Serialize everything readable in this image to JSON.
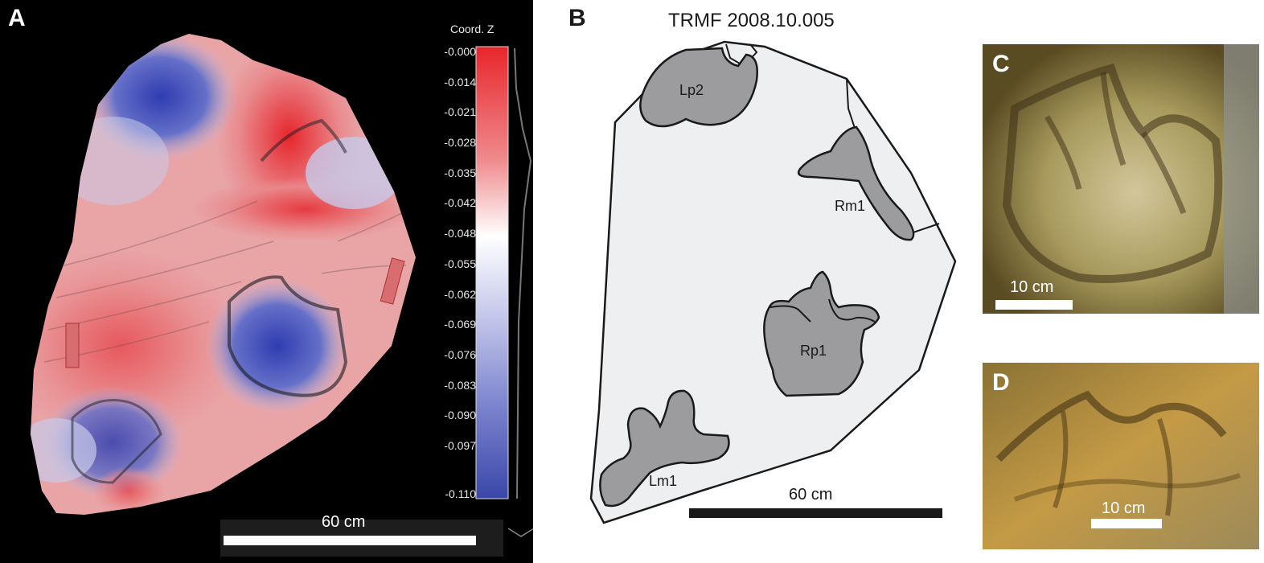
{
  "panel_a": {
    "letter": "A",
    "colorbar_title": "Coord. Z",
    "colorbar_ticks": [
      "-0.000",
      "-0.014",
      "-0.021",
      "-0.028",
      "-0.035",
      "-0.042",
      "-0.048",
      "-0.055",
      "-0.062",
      "-0.069",
      "-0.076",
      "-0.083",
      "-0.090",
      "-0.097",
      "-0.110"
    ],
    "colorbar_colors": {
      "top": "#e8262b",
      "middle": "#ffffff",
      "bottom": "#3a47a8"
    },
    "scale_label": "60 cm"
  },
  "panel_b": {
    "letter": "B",
    "title": "TRMF 2008.10.005",
    "tracks": [
      "Lp2",
      "Rm1",
      "Rp1",
      "Lm1"
    ],
    "scale_label": "60 cm",
    "colors": {
      "slab": "#eeeff1",
      "track": "#9c9c9e",
      "outline": "#1a1a1a"
    }
  },
  "panel_c": {
    "letter": "C",
    "scale_label": "10 cm"
  },
  "panel_d": {
    "letter": "D",
    "scale_label": "10 cm"
  }
}
